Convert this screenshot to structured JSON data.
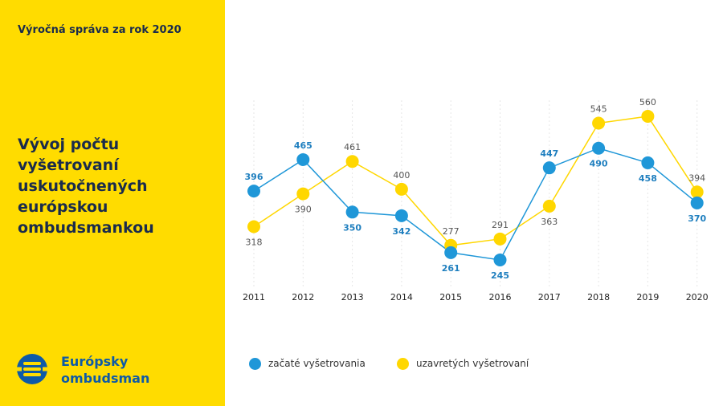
{
  "header": {
    "report_label": "Výročná správa za rok 2020"
  },
  "sidebar": {
    "title_lines": [
      "Vývoj počtu vyšetrovaní",
      "uskutočnených",
      "európskou",
      "ombudsmankou"
    ],
    "logo_lines": [
      "Európsky",
      "ombudsman"
    ]
  },
  "colors": {
    "sidebar_bg": "#FFDC00",
    "series_blue": "#1F97D8",
    "series_yellow": "#FFD700",
    "blue_label": "#1F7FBF",
    "gray_label": "#555555",
    "title_text": "#1a2b4c",
    "logo_blue": "#0E5AA7"
  },
  "icons": {
    "logo": "european-ombudsman-logo-icon"
  },
  "chart_data": {
    "type": "line",
    "title": "Vývoj počtu vyšetrovaní uskutočnených európskou ombudsmankou",
    "x": [
      "2011",
      "2012",
      "2013",
      "2014",
      "2015",
      "2016",
      "2017",
      "2018",
      "2019",
      "2020"
    ],
    "series": [
      {
        "name": "začaté vyšetrovania",
        "color": "#1F97D8",
        "values": [
          396,
          465,
          350,
          342,
          261,
          245,
          447,
          490,
          458,
          370
        ]
      },
      {
        "name": "uzavretých vyšetrovaní",
        "color": "#FFD700",
        "values": [
          318,
          390,
          461,
          400,
          277,
          291,
          363,
          545,
          560,
          394
        ]
      }
    ],
    "ylim": [
      200,
      600
    ],
    "grid": "vertical",
    "legend": "bottom"
  }
}
